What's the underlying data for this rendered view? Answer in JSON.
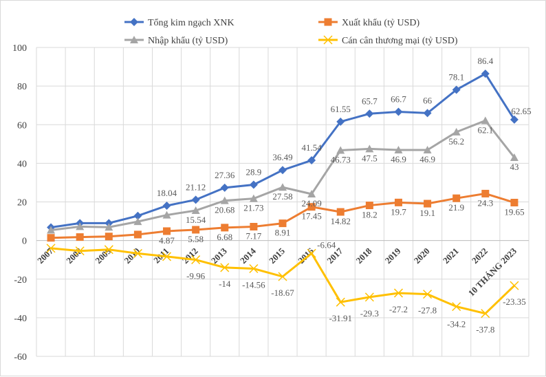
{
  "chart_data": {
    "type": "line",
    "categories": [
      "2007",
      "2008",
      "2009",
      "2010",
      "2011",
      "2012",
      "2013",
      "2014",
      "2015",
      "2016",
      "2017",
      "2018",
      "2019",
      "2020",
      "2021",
      "2022",
      "10 THÁNG 2023"
    ],
    "ylim": [
      -60,
      100
    ],
    "yticks": [
      -60,
      -40,
      -20,
      0,
      20,
      40,
      60,
      80,
      100
    ],
    "grid": true,
    "legend": "top",
    "series": [
      {
        "name": "Tổng kim ngạch XNK",
        "color": "#4472C4",
        "marker": "diamond",
        "values": [
          6.8,
          9.0,
          9.0,
          12.8,
          18.04,
          21.12,
          27.36,
          28.9,
          36.49,
          41.54,
          61.55,
          65.7,
          66.7,
          66,
          78.1,
          86.4,
          62.65
        ],
        "labels": [
          null,
          null,
          null,
          null,
          "18.04",
          "21.12",
          "27.36",
          "28.9",
          "36.49",
          "41.54",
          "61.55",
          "65.7",
          "66.7",
          "66",
          "78.1",
          "86.4",
          "62.65"
        ]
      },
      {
        "name": "Xuất khẩu (tỷ USD)",
        "color": "#ED7D31",
        "marker": "square",
        "values": [
          1.4,
          1.8,
          2.1,
          3.1,
          4.87,
          5.58,
          6.68,
          7.17,
          8.91,
          17.45,
          14.82,
          18.2,
          19.7,
          19.1,
          21.9,
          24.3,
          19.65
        ],
        "labels": [
          null,
          null,
          null,
          null,
          "4.87",
          "5.58",
          "6.68",
          "7.17",
          "8.91",
          "17.45",
          "14.82",
          "18.2",
          "19.7",
          "19.1",
          "21.9",
          "24.3",
          "19.65"
        ]
      },
      {
        "name": "Nhập khẩu (tỷ USD)",
        "color": "#A5A5A5",
        "marker": "triangle",
        "values": [
          5.4,
          7.2,
          6.9,
          9.8,
          13.2,
          15.54,
          20.68,
          21.73,
          27.58,
          24.09,
          46.73,
          47.5,
          46.9,
          46.9,
          56.2,
          62.1,
          43
        ],
        "labels": [
          null,
          null,
          null,
          null,
          null,
          "15.54",
          "20.68",
          "21.73",
          "27.58",
          "24.09",
          "46.73",
          "47.5",
          "46.9",
          "46.9",
          "56.2",
          "62.1",
          "43"
        ]
      },
      {
        "name": "Cán cân thương mại (tỷ USD)",
        "color": "#FFC000",
        "marker": "x",
        "values": [
          -4.0,
          -5.4,
          -4.7,
          -6.7,
          -8.3,
          -9.96,
          -14,
          -14.56,
          -18.67,
          -6.64,
          -31.91,
          -29.3,
          -27.2,
          -27.8,
          -34.2,
          -37.8,
          -23.35
        ],
        "labels": [
          null,
          null,
          null,
          null,
          null,
          "-9.96",
          "-14",
          "-14.56",
          "-18.67",
          "-6.64",
          "-31.91",
          "-29.3",
          "-27.2",
          "-27.8",
          "-34.2",
          "-37.8",
          "-23.35"
        ]
      }
    ]
  }
}
